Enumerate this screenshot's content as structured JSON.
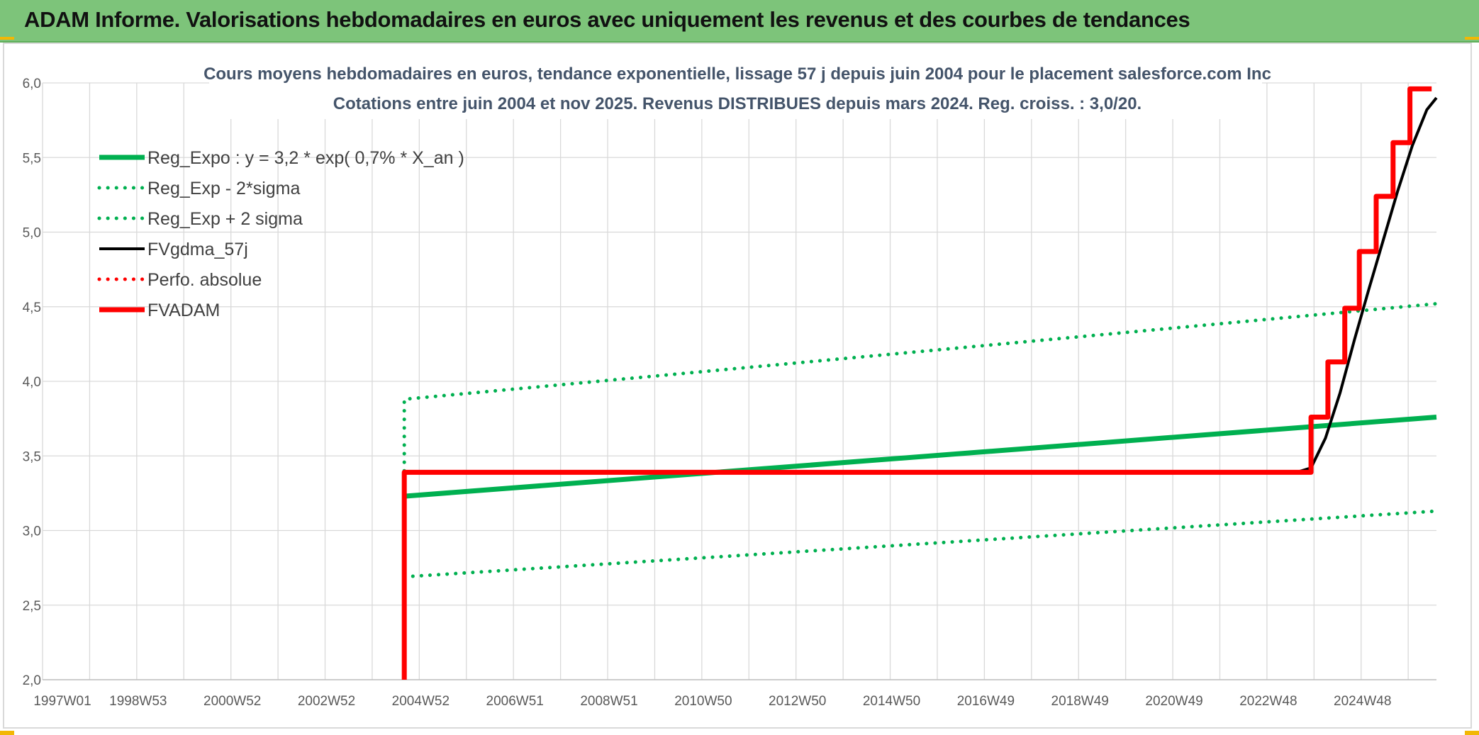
{
  "banner": {
    "title": "ADAM Informe. Valorisations hebdomadaires en euros avec uniquement les revenus et des courbes de tendances"
  },
  "chart_data": {
    "type": "line",
    "title": "Cours moyens hebdomadaires en euros, tendance exponentielle, lissage 57 j depuis juin 2004 pour le placement salesforce.com Inc",
    "subtitle": "Cotations entre juin 2004 et nov 2025. Revenus DISTRIBUES depuis mars 2024. Reg. croiss. : 3,0/20.",
    "x_tick_labels": [
      "1997W01",
      "1998W53",
      "2000W52",
      "2002W52",
      "2004W52",
      "2006W51",
      "2008W51",
      "2010W50",
      "2012W50",
      "2014W50",
      "2016W49",
      "2018W49",
      "2020W49",
      "2022W48",
      "2024W48"
    ],
    "xlim": [
      1997.0,
      2025.9
    ],
    "ylim": [
      2.0,
      6.0
    ],
    "y_ticks": [
      "2,0",
      "2,5",
      "3,0",
      "3,5",
      "4,0",
      "4,5",
      "5,0",
      "5,5",
      "6,0"
    ],
    "grid": true,
    "legend_position": "top-left",
    "legend": [
      {
        "label": "Reg_Expo : y = 3,2 * exp( 0,7% *  X_an )",
        "color": "#00b050",
        "style": "solid-thick"
      },
      {
        "label": "Reg_Exp - 2*sigma",
        "color": "#00b050",
        "style": "dotted"
      },
      {
        "label": "Reg_Exp + 2 sigma",
        "color": "#00b050",
        "style": "dotted"
      },
      {
        "label": "FVgdma_57j",
        "color": "#000000",
        "style": "solid"
      },
      {
        "label": "Perfo. absolue",
        "color": "#ff0000",
        "style": "dotted"
      },
      {
        "label": "FVADAM",
        "color": "#ff0000",
        "style": "solid-thick"
      }
    ],
    "series": [
      {
        "name": "Reg_Expo : y = 3,2 * exp( 0,7% *  X_an )",
        "color": "#00b050",
        "x": [
          2004.5,
          2025.9
        ],
        "y": [
          3.23,
          3.76
        ]
      },
      {
        "name": "Reg_Exp - 2*sigma",
        "color": "#00b050",
        "x": [
          2004.5,
          2025.9
        ],
        "y": [
          2.69,
          3.13
        ]
      },
      {
        "name": "Reg_Exp + 2 sigma",
        "color": "#00b050",
        "x": [
          2004.5,
          2004.5,
          2025.9
        ],
        "y": [
          3.4,
          3.88,
          4.52
        ]
      },
      {
        "name": "FVgdma_57j",
        "color": "#000000",
        "x": [
          2023.0,
          2023.3,
          2023.6,
          2023.9,
          2024.2,
          2024.5,
          2024.8,
          2025.1,
          2025.4,
          2025.7,
          2025.9
        ],
        "y": [
          3.39,
          3.42,
          3.62,
          3.92,
          4.28,
          4.62,
          4.95,
          5.28,
          5.58,
          5.82,
          5.9
        ]
      },
      {
        "name": "FVADAM",
        "color": "#ff0000",
        "x": [
          2004.5,
          2004.5,
          2023.3,
          2023.3,
          2023.65,
          2023.65,
          2024.0,
          2024.0,
          2024.3,
          2024.3,
          2024.65,
          2024.65,
          2025.0,
          2025.0,
          2025.35,
          2025.35,
          2025.6,
          2025.6,
          2025.8
        ],
        "y": [
          2.0,
          3.39,
          3.39,
          3.76,
          3.76,
          4.13,
          4.13,
          4.49,
          4.49,
          4.87,
          4.87,
          5.24,
          5.24,
          5.6,
          5.6,
          5.96,
          5.96,
          5.96,
          5.96
        ]
      }
    ]
  }
}
